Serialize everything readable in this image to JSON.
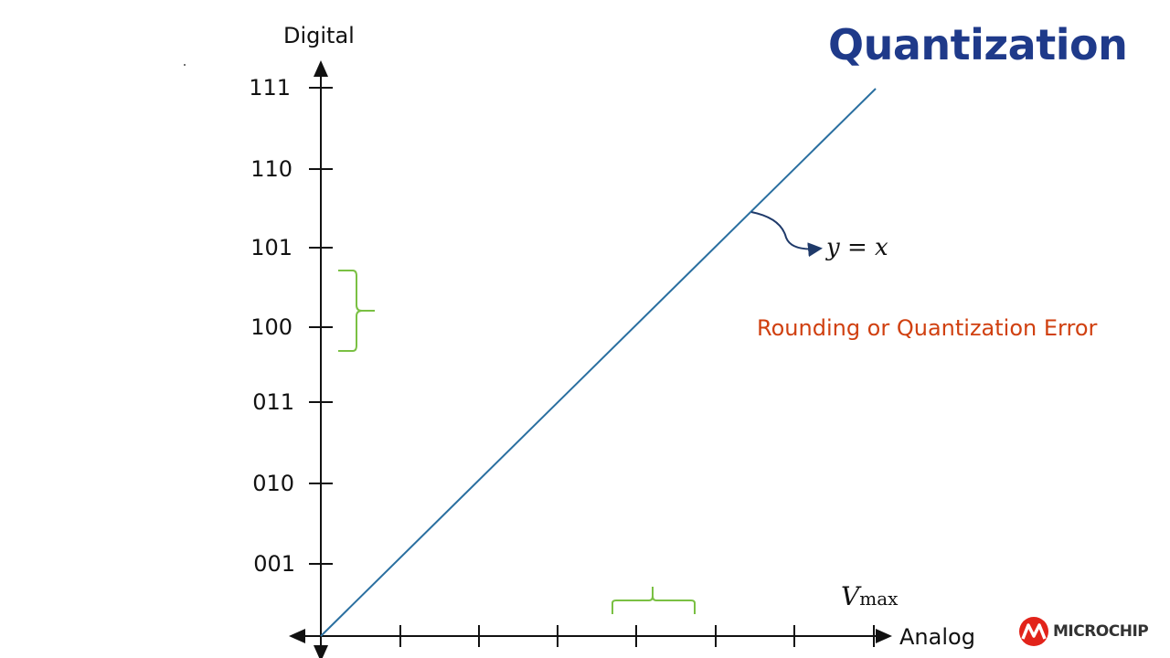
{
  "slide": {
    "title": "Quantization",
    "y_axis_label": "Digital",
    "x_axis_label": "Analog",
    "line_label": "y = x",
    "vmax_symbol": "V",
    "vmax_subscript": "max",
    "annotation": "Rounding or Quantization Error",
    "logo_text": "MICROCHIP",
    "y_ticks": [
      "111",
      "110",
      "101",
      "100",
      "011",
      "010",
      "001"
    ]
  },
  "colors": {
    "title": "#1f3a8a",
    "line": "#2a6fa0",
    "bracket": "#7ac043",
    "annotation": "#d04010",
    "logo_red": "#e2231a"
  }
}
